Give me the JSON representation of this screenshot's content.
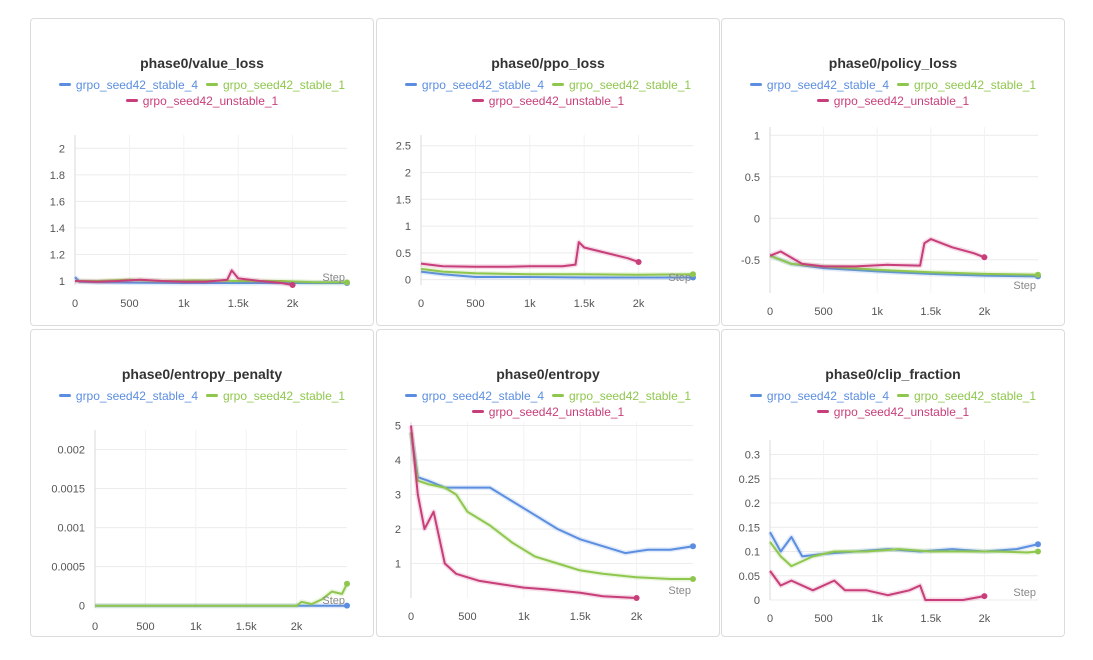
{
  "colors": {
    "stable_4": "#5b8ee0",
    "stable_1": "#8fc74e",
    "unstable_1": "#c83e7a"
  },
  "legend_labels": {
    "stable_4": "grpo_seed42_stable_4",
    "stable_1": "grpo_seed42_stable_1",
    "unstable_1": "grpo_seed42_unstable_1"
  },
  "chart_data": [
    {
      "type": "line",
      "title": "phase0/value_loss",
      "xlabel": "Step",
      "xticks": [
        "0",
        "500",
        "1k",
        "1.5k",
        "2k"
      ],
      "xtick_values": [
        0,
        500,
        1000,
        1500,
        2000
      ],
      "yticks": [
        "1",
        "1.2",
        "1.4",
        "1.6",
        "1.8",
        "2"
      ],
      "ytick_values": [
        1,
        1.2,
        1.4,
        1.6,
        1.8,
        2
      ],
      "xlim": [
        0,
        2500
      ],
      "ylim": [
        0.97,
        2.1
      ],
      "series": [
        {
          "key": "stable_4",
          "points": [
            [
              0,
              1.03
            ],
            [
              40,
              0.995
            ],
            [
              200,
              0.99
            ],
            [
              500,
              0.988
            ],
            [
              1000,
              0.985
            ],
            [
              1500,
              0.985
            ],
            [
              2000,
              0.985
            ],
            [
              2500,
              0.985
            ]
          ]
        },
        {
          "key": "stable_1",
          "points": [
            [
              0,
              1.0
            ],
            [
              200,
              1.0
            ],
            [
              500,
              1.01
            ],
            [
              800,
              1.0
            ],
            [
              1100,
              1.005
            ],
            [
              1500,
              1.0
            ],
            [
              1900,
              1.0
            ],
            [
              2200,
              0.99
            ],
            [
              2500,
              0.99
            ]
          ]
        },
        {
          "key": "unstable_1",
          "points": [
            [
              0,
              1.0
            ],
            [
              200,
              0.995
            ],
            [
              400,
              1.0
            ],
            [
              600,
              1.01
            ],
            [
              800,
              1.0
            ],
            [
              1000,
              0.995
            ],
            [
              1200,
              0.995
            ],
            [
              1400,
              1.01
            ],
            [
              1440,
              1.08
            ],
            [
              1500,
              1.02
            ],
            [
              1700,
              1.0
            ],
            [
              1900,
              0.985
            ],
            [
              2000,
              0.97
            ]
          ]
        }
      ]
    },
    {
      "type": "line",
      "title": "phase0/ppo_loss",
      "xlabel": "Step",
      "xticks": [
        "0",
        "500",
        "1k",
        "1.5k",
        "2k"
      ],
      "xtick_values": [
        0,
        500,
        1000,
        1500,
        2000
      ],
      "yticks": [
        "0",
        "0.5",
        "1",
        "1.5",
        "2",
        "2.5"
      ],
      "ytick_values": [
        0,
        0.5,
        1,
        1.5,
        2,
        2.5
      ],
      "xlim": [
        0,
        2500
      ],
      "ylim": [
        -0.1,
        2.7
      ],
      "series": [
        {
          "key": "stable_4",
          "points": [
            [
              0,
              0.15
            ],
            [
              200,
              0.1
            ],
            [
              500,
              0.05
            ],
            [
              1000,
              0.05
            ],
            [
              1500,
              0.04
            ],
            [
              2000,
              0.04
            ],
            [
              2500,
              0.04
            ]
          ]
        },
        {
          "key": "stable_1",
          "points": [
            [
              0,
              0.2
            ],
            [
              200,
              0.15
            ],
            [
              500,
              0.12
            ],
            [
              1000,
              0.1
            ],
            [
              1500,
              0.1
            ],
            [
              2000,
              0.09
            ],
            [
              2500,
              0.1
            ]
          ]
        },
        {
          "key": "unstable_1",
          "points": [
            [
              0,
              0.3
            ],
            [
              200,
              0.25
            ],
            [
              500,
              0.24
            ],
            [
              800,
              0.24
            ],
            [
              1000,
              0.25
            ],
            [
              1300,
              0.25
            ],
            [
              1420,
              0.28
            ],
            [
              1450,
              0.7
            ],
            [
              1500,
              0.6
            ],
            [
              1700,
              0.5
            ],
            [
              1900,
              0.4
            ],
            [
              2000,
              0.33
            ]
          ]
        }
      ]
    },
    {
      "type": "line",
      "title": "phase0/policy_loss",
      "xlabel": "Step",
      "xticks": [
        "0",
        "500",
        "1k",
        "1.5k",
        "2k"
      ],
      "xtick_values": [
        0,
        500,
        1000,
        1500,
        2000
      ],
      "yticks": [
        "-0.5",
        "0",
        "0.5",
        "1"
      ],
      "ytick_values": [
        -0.5,
        0,
        0.5,
        1
      ],
      "xlim": [
        0,
        2500
      ],
      "ylim": [
        -0.9,
        1.1
      ],
      "series": [
        {
          "key": "stable_4",
          "points": [
            [
              0,
              -0.45
            ],
            [
              200,
              -0.55
            ],
            [
              500,
              -0.6
            ],
            [
              1000,
              -0.64
            ],
            [
              1500,
              -0.67
            ],
            [
              2000,
              -0.69
            ],
            [
              2500,
              -0.7
            ]
          ]
        },
        {
          "key": "stable_1",
          "points": [
            [
              0,
              -0.45
            ],
            [
              200,
              -0.55
            ],
            [
              500,
              -0.58
            ],
            [
              1000,
              -0.62
            ],
            [
              1500,
              -0.65
            ],
            [
              2000,
              -0.67
            ],
            [
              2500,
              -0.68
            ]
          ]
        },
        {
          "key": "unstable_1",
          "points": [
            [
              0,
              -0.45
            ],
            [
              100,
              -0.4
            ],
            [
              300,
              -0.55
            ],
            [
              500,
              -0.58
            ],
            [
              800,
              -0.58
            ],
            [
              1100,
              -0.56
            ],
            [
              1400,
              -0.57
            ],
            [
              1440,
              -0.3
            ],
            [
              1500,
              -0.25
            ],
            [
              1700,
              -0.35
            ],
            [
              1900,
              -0.42
            ],
            [
              2000,
              -0.47
            ]
          ]
        }
      ]
    },
    {
      "type": "line",
      "title": "phase0/entropy_penalty",
      "xlabel": "Step",
      "xticks": [
        "0",
        "500",
        "1k",
        "1.5k",
        "2k"
      ],
      "xtick_values": [
        0,
        500,
        1000,
        1500,
        2000
      ],
      "yticks": [
        "0",
        "0.0005",
        "0.001",
        "0.0015",
        "0.002"
      ],
      "ytick_values": [
        0,
        0.0005,
        0.001,
        0.0015,
        0.002
      ],
      "xlim": [
        0,
        2500
      ],
      "ylim": [
        -3e-05,
        0.00225
      ],
      "series": [
        {
          "key": "stable_4",
          "points": [
            [
              0,
              0
            ],
            [
              1000,
              0
            ],
            [
              2000,
              0
            ],
            [
              2500,
              0
            ]
          ]
        },
        {
          "key": "stable_1",
          "points": [
            [
              0,
              0
            ],
            [
              1000,
              0
            ],
            [
              2000,
              0
            ],
            [
              2050,
              5e-05
            ],
            [
              2150,
              2e-05
            ],
            [
              2250,
              8e-05
            ],
            [
              2350,
              0.00018
            ],
            [
              2450,
              0.00015
            ],
            [
              2500,
              0.00028
            ]
          ]
        }
      ]
    },
    {
      "type": "line",
      "title": "phase0/entropy",
      "xlabel": "Step",
      "xticks": [
        "0",
        "500",
        "1k",
        "1.5k",
        "2k"
      ],
      "xtick_values": [
        0,
        500,
        1000,
        1500,
        2000
      ],
      "yticks": [
        "1",
        "2",
        "3",
        "4",
        "5"
      ],
      "ytick_values": [
        1,
        2,
        3,
        4,
        5
      ],
      "xlim": [
        0,
        2500
      ],
      "ylim": [
        0,
        5.1
      ],
      "series": [
        {
          "key": "stable_4",
          "points": [
            [
              0,
              4.8
            ],
            [
              60,
              3.5
            ],
            [
              150,
              3.4
            ],
            [
              300,
              3.2
            ],
            [
              500,
              3.2
            ],
            [
              700,
              3.2
            ],
            [
              900,
              2.8
            ],
            [
              1100,
              2.4
            ],
            [
              1300,
              2.0
            ],
            [
              1500,
              1.7
            ],
            [
              1700,
              1.5
            ],
            [
              1900,
              1.3
            ],
            [
              2100,
              1.4
            ],
            [
              2300,
              1.4
            ],
            [
              2500,
              1.5
            ]
          ]
        },
        {
          "key": "stable_1",
          "points": [
            [
              0,
              4.8
            ],
            [
              60,
              3.4
            ],
            [
              150,
              3.3
            ],
            [
              300,
              3.2
            ],
            [
              400,
              3.0
            ],
            [
              500,
              2.5
            ],
            [
              700,
              2.1
            ],
            [
              900,
              1.6
            ],
            [
              1100,
              1.2
            ],
            [
              1300,
              1.0
            ],
            [
              1500,
              0.8
            ],
            [
              1700,
              0.7
            ],
            [
              2000,
              0.6
            ],
            [
              2300,
              0.55
            ],
            [
              2500,
              0.55
            ]
          ]
        },
        {
          "key": "unstable_1",
          "points": [
            [
              0,
              5.0
            ],
            [
              60,
              3.0
            ],
            [
              120,
              2.0
            ],
            [
              200,
              2.5
            ],
            [
              300,
              1.0
            ],
            [
              400,
              0.7
            ],
            [
              600,
              0.5
            ],
            [
              800,
              0.4
            ],
            [
              1000,
              0.3
            ],
            [
              1200,
              0.25
            ],
            [
              1500,
              0.15
            ],
            [
              1700,
              0.05
            ],
            [
              2000,
              0.0
            ]
          ]
        }
      ]
    },
    {
      "type": "line",
      "title": "phase0/clip_fraction",
      "xlabel": "Step",
      "xticks": [
        "0",
        "500",
        "1k",
        "1.5k",
        "2k"
      ],
      "xtick_values": [
        0,
        500,
        1000,
        1500,
        2000
      ],
      "yticks": [
        "0",
        "0.05",
        "0.1",
        "0.15",
        "0.2",
        "0.25",
        "0.3"
      ],
      "ytick_values": [
        0,
        0.05,
        0.1,
        0.15,
        0.2,
        0.25,
        0.3
      ],
      "xlim": [
        0,
        2500
      ],
      "ylim": [
        0,
        0.33
      ],
      "series": [
        {
          "key": "stable_4",
          "points": [
            [
              0,
              0.14
            ],
            [
              100,
              0.1
            ],
            [
              200,
              0.13
            ],
            [
              300,
              0.09
            ],
            [
              500,
              0.095
            ],
            [
              800,
              0.1
            ],
            [
              1100,
              0.105
            ],
            [
              1400,
              0.1
            ],
            [
              1700,
              0.105
            ],
            [
              2000,
              0.1
            ],
            [
              2300,
              0.105
            ],
            [
              2500,
              0.115
            ]
          ]
        },
        {
          "key": "stable_1",
          "points": [
            [
              0,
              0.12
            ],
            [
              100,
              0.09
            ],
            [
              200,
              0.07
            ],
            [
              400,
              0.09
            ],
            [
              600,
              0.1
            ],
            [
              900,
              0.1
            ],
            [
              1200,
              0.105
            ],
            [
              1500,
              0.1
            ],
            [
              1800,
              0.1
            ],
            [
              2100,
              0.1
            ],
            [
              2400,
              0.098
            ],
            [
              2500,
              0.1
            ]
          ]
        },
        {
          "key": "unstable_1",
          "points": [
            [
              0,
              0.06
            ],
            [
              100,
              0.03
            ],
            [
              200,
              0.04
            ],
            [
              400,
              0.02
            ],
            [
              600,
              0.04
            ],
            [
              700,
              0.02
            ],
            [
              900,
              0.02
            ],
            [
              1100,
              0.01
            ],
            [
              1300,
              0.02
            ],
            [
              1400,
              0.03
            ],
            [
              1450,
              0.0
            ],
            [
              1600,
              0.0
            ],
            [
              1800,
              0.0
            ],
            [
              2000,
              0.008
            ]
          ]
        }
      ]
    }
  ]
}
